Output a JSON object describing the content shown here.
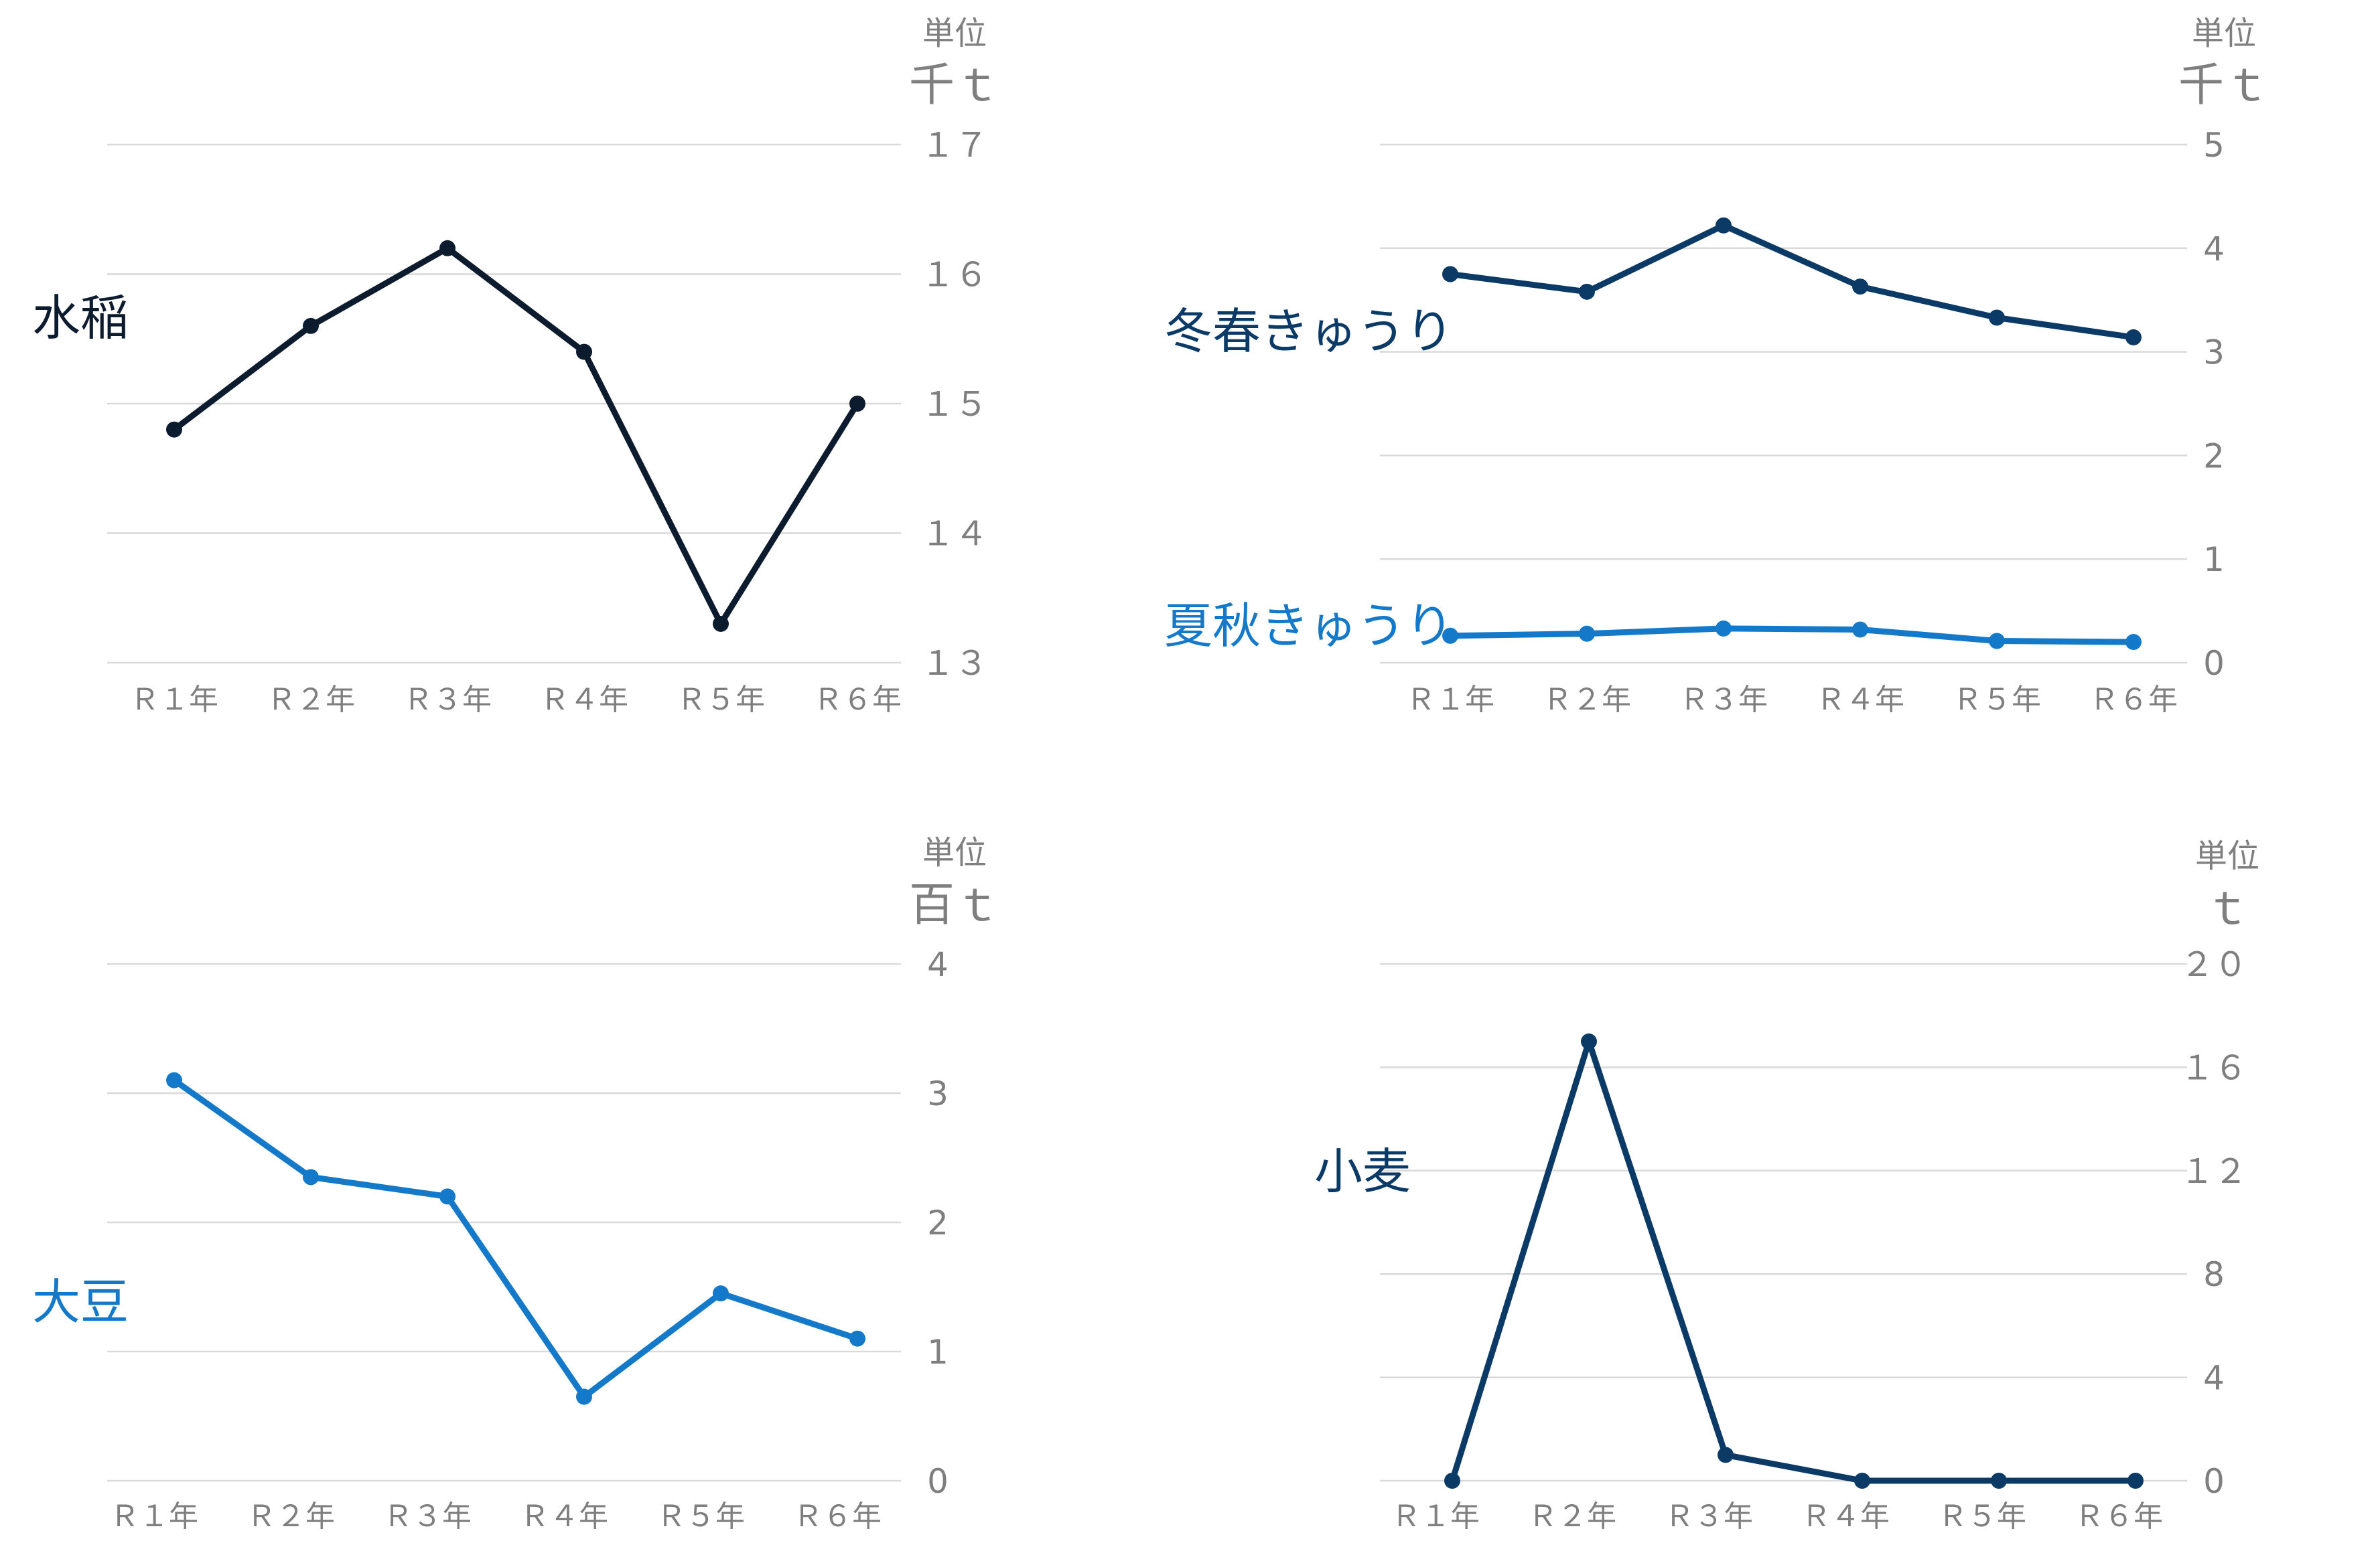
{
  "colors": {
    "grid": "#d9d9d9",
    "tick_text": "#7f7f7f",
    "black_navy": "#0d1b2e",
    "dark_blue": "#0b3a66",
    "blue": "#1479c9"
  },
  "chart_data": [
    {
      "type": "line",
      "categories": [
        "Ｒ１年",
        "Ｒ２年",
        "Ｒ３年",
        "Ｒ４年",
        "Ｒ５年",
        "Ｒ６年"
      ],
      "unit_lines": [
        "単位",
        "千ｔ"
      ],
      "yticks": [
        "１３",
        "１４",
        "１５",
        "１６",
        "１７"
      ],
      "ylim": [
        13,
        17
      ],
      "grid": true,
      "series": [
        {
          "name": "水稲",
          "color": "#0d1b2e",
          "values": [
            14.8,
            15.6,
            16.2,
            15.4,
            13.3,
            15.0
          ]
        }
      ]
    },
    {
      "type": "line",
      "categories": [
        "Ｒ１年",
        "Ｒ２年",
        "Ｒ３年",
        "Ｒ４年",
        "Ｒ５年",
        "Ｒ６年"
      ],
      "unit_lines": [
        "単位",
        "千ｔ"
      ],
      "yticks": [
        "0",
        "1",
        "2",
        "3",
        "4",
        "5"
      ],
      "ylim": [
        0,
        5
      ],
      "grid": true,
      "series": [
        {
          "name": "冬春きゅうり",
          "color": "#0b3a66",
          "values": [
            3.75,
            3.58,
            4.22,
            3.63,
            3.33,
            3.14
          ]
        },
        {
          "name": "夏秋きゅうり",
          "color": "#1479c9",
          "values": [
            0.26,
            0.28,
            0.33,
            0.32,
            0.21,
            0.2
          ]
        }
      ]
    },
    {
      "type": "line",
      "categories": [
        "Ｒ１年",
        "Ｒ２年",
        "Ｒ３年",
        "Ｒ４年",
        "Ｒ５年",
        "Ｒ６年"
      ],
      "unit_lines": [
        "単位",
        "百ｔ"
      ],
      "yticks": [
        "0",
        "1",
        "2",
        "3",
        "4"
      ],
      "ylim": [
        0,
        4
      ],
      "grid": true,
      "series": [
        {
          "name": "大豆",
          "color": "#1479c9",
          "values": [
            3.1,
            2.35,
            2.2,
            0.65,
            1.45,
            1.1
          ]
        }
      ]
    },
    {
      "type": "line",
      "categories": [
        "Ｒ１年",
        "Ｒ２年",
        "Ｒ３年",
        "Ｒ４年",
        "Ｒ５年",
        "Ｒ６年"
      ],
      "unit_lines": [
        "単位",
        "ｔ"
      ],
      "yticks": [
        "0",
        "4",
        "8",
        "１２",
        "１６",
        "２０"
      ],
      "ylim": [
        0,
        20
      ],
      "grid": true,
      "series": [
        {
          "name": "小麦",
          "color": "#0b3a66",
          "values": [
            0,
            17,
            1,
            0,
            0,
            0
          ]
        }
      ]
    }
  ]
}
